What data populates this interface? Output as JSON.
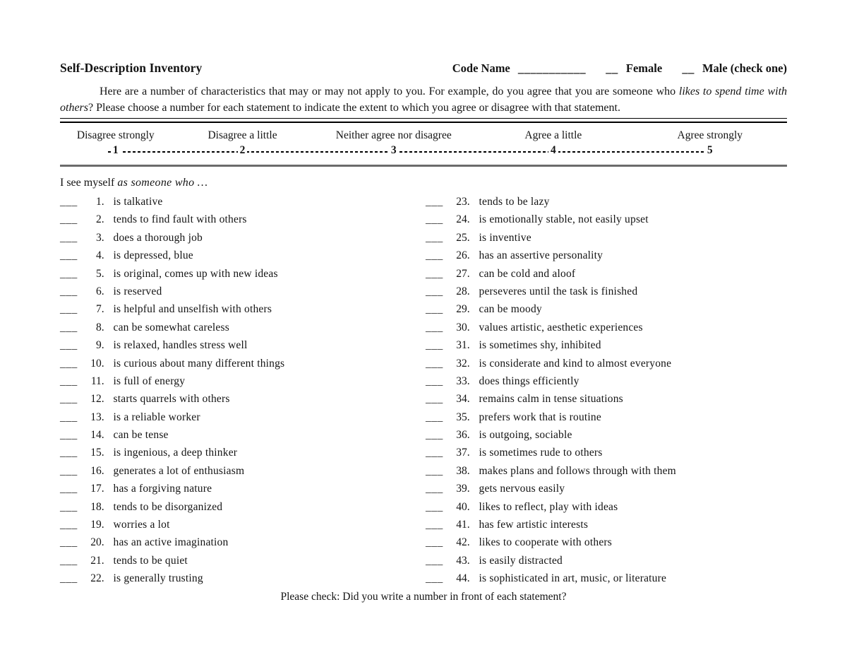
{
  "header": {
    "title": "Self-Description Inventory",
    "code_name_label": "Code Name",
    "code_name_blank": "___________",
    "female_blank": "__",
    "female_label": "Female",
    "male_blank": "__",
    "male_label": "Male (check one)"
  },
  "instructions": {
    "part1": "Here are a number of characteristics that may or may not apply to you.  For example, do you agree that you are someone who ",
    "italic": "likes to spend time with others",
    "part2": "?  Please choose a number for each statement to indicate the extent to which you agree or disagree with that statement."
  },
  "scale": {
    "labels": [
      "Disagree strongly",
      "Disagree a little",
      "Neither agree nor disagree",
      "Agree a little",
      "Agree strongly"
    ],
    "numbers": [
      "1",
      "2",
      "3",
      "4",
      "5"
    ]
  },
  "prompt": {
    "normal": "I see myself ",
    "italic": "as someone who …"
  },
  "items_section": {
    "blank": "___"
  },
  "items": [
    {
      "num": "1.",
      "text": "is talkative"
    },
    {
      "num": "2.",
      "text": "tends to find fault with others"
    },
    {
      "num": "3.",
      "text": "does a thorough job"
    },
    {
      "num": "4.",
      "text": "is depressed, blue"
    },
    {
      "num": "5.",
      "text": "is original, comes up with new ideas"
    },
    {
      "num": "6.",
      "text": "is reserved"
    },
    {
      "num": "7.",
      "text": "is helpful and unselfish with others"
    },
    {
      "num": "8.",
      "text": "can be somewhat careless"
    },
    {
      "num": "9.",
      "text": "is relaxed, handles stress well"
    },
    {
      "num": "10.",
      "text": "is curious about many different things"
    },
    {
      "num": "11.",
      "text": "is full of energy"
    },
    {
      "num": "12.",
      "text": "starts quarrels with others"
    },
    {
      "num": "13.",
      "text": "is a reliable worker"
    },
    {
      "num": "14.",
      "text": "can be tense"
    },
    {
      "num": "15.",
      "text": "is ingenious, a deep thinker"
    },
    {
      "num": "16.",
      "text": "generates a lot of enthusiasm"
    },
    {
      "num": "17.",
      "text": "has a forgiving nature"
    },
    {
      "num": "18.",
      "text": "tends to be disorganized"
    },
    {
      "num": "19.",
      "text": "worries a lot"
    },
    {
      "num": "20.",
      "text": "has an active imagination"
    },
    {
      "num": "21.",
      "text": "tends to be quiet"
    },
    {
      "num": "22.",
      "text": "is generally trusting"
    },
    {
      "num": "23.",
      "text": "tends to be lazy"
    },
    {
      "num": "24.",
      "text": "is emotionally stable, not easily upset"
    },
    {
      "num": "25.",
      "text": "is inventive"
    },
    {
      "num": "26.",
      "text": "has an assertive personality"
    },
    {
      "num": "27.",
      "text": "can be cold and aloof"
    },
    {
      "num": "28.",
      "text": "perseveres until the task is finished"
    },
    {
      "num": "29.",
      "text": "can be moody"
    },
    {
      "num": "30.",
      "text": "values artistic, aesthetic experiences"
    },
    {
      "num": "31.",
      "text": "is sometimes shy, inhibited"
    },
    {
      "num": "32.",
      "text": "is considerate and kind to almost everyone"
    },
    {
      "num": "33.",
      "text": "does things efficiently"
    },
    {
      "num": "34.",
      "text": "remains calm in tense situations"
    },
    {
      "num": "35.",
      "text": "prefers work that is routine"
    },
    {
      "num": "36.",
      "text": "is outgoing, sociable"
    },
    {
      "num": "37.",
      "text": "is sometimes rude to others"
    },
    {
      "num": "38.",
      "text": "makes plans and follows through with them"
    },
    {
      "num": "39.",
      "text": "gets nervous easily"
    },
    {
      "num": "40.",
      "text": "likes to reflect, play with ideas"
    },
    {
      "num": "41.",
      "text": "has few artistic interests"
    },
    {
      "num": "42.",
      "text": "likes to cooperate with others"
    },
    {
      "num": "43.",
      "text": "is easily distracted"
    },
    {
      "num": "44.",
      "text": "is sophisticated in art, music, or literature"
    }
  ],
  "footer": {
    "note": "Please check: Did you write a number in front of each statement?"
  },
  "colors": {
    "text": "#141414",
    "rule_black": "#000000",
    "rule_gray": "#6b6b6b",
    "background": "#ffffff"
  }
}
